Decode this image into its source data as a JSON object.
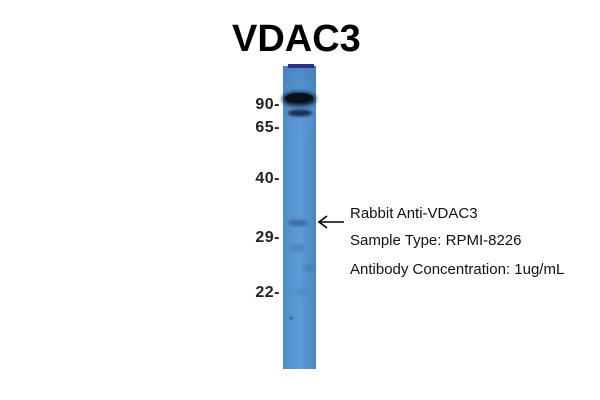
{
  "title": "VDAC3",
  "markers": [
    "90-",
    "65-",
    "40-",
    "29-",
    "22-"
  ],
  "annotations": {
    "antibody": "Rabbit Anti-VDAC3",
    "sample_type": "Sample Type: RPMI-8226",
    "concentration": "Antibody Concentration: 1ug/mL"
  },
  "colors": {
    "lane": "#5a9ad6",
    "band": "#10172a",
    "arrow": "#000000"
  }
}
